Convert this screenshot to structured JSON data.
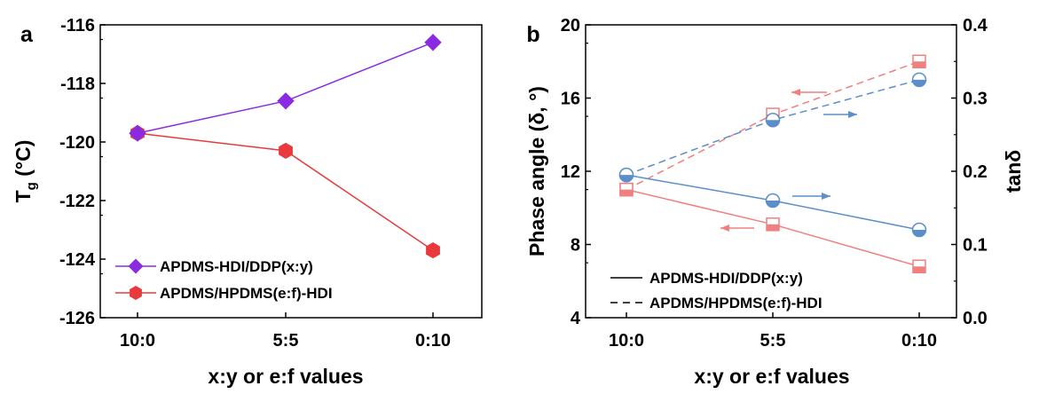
{
  "figure": {
    "colors": {
      "purple": "#8A2BE2",
      "red": "#E8393C",
      "blue": "#5B8FC9",
      "pink": "#F08080",
      "axis": "#000000"
    }
  },
  "chart_data": [
    {
      "panel_label": "a",
      "type": "line",
      "categories": [
        "10:0",
        "5:5",
        "0:10"
      ],
      "xlabel": "x:y or e:f values",
      "ylabel": "T",
      "ylabel_sub": "g",
      "ylabel_unit": " (°C)",
      "ylim": [
        -126,
        -116
      ],
      "yticks": [
        "-116",
        "-118",
        "-120",
        "-122",
        "-124",
        "-126"
      ],
      "series": [
        {
          "name": "APDMS-HDI/DDP(x:y)",
          "values": [
            -119.7,
            -118.6,
            -116.6
          ],
          "marker": "diamond",
          "color": "#8A2BE2"
        },
        {
          "name": "APDMS/HPDMS(e:f)-HDI",
          "values": [
            -119.7,
            -120.3,
            -123.7
          ],
          "marker": "hexagon",
          "color": "#E8393C"
        }
      ]
    },
    {
      "panel_label": "b",
      "type": "line",
      "categories": [
        "10:0",
        "5:5",
        "0:10"
      ],
      "xlabel": "x:y or e:f values",
      "ylabel": "Phase angle (δ, °)",
      "ylim": [
        4,
        20
      ],
      "yticks": [
        "20",
        "16",
        "12",
        "8",
        "4"
      ],
      "y2label": "tanδ",
      "y2lim": [
        0.0,
        0.4
      ],
      "y2ticks": [
        "0.4",
        "0.3",
        "0.2",
        "0.1",
        "0.0"
      ],
      "legend": [
        {
          "name": "APDMS-HDI/DDP(x:y)",
          "style": "solid"
        },
        {
          "name": "APDMS/HPDMS(e:f)-HDI",
          "style": "dashed"
        }
      ],
      "series": [
        {
          "name": "Phase angle, APDMS-HDI/DDP(x:y)",
          "axis": "left",
          "style": "solid",
          "color": "#F08080",
          "values": [
            11.0,
            9.1,
            6.8
          ]
        },
        {
          "name": "Phase angle, APDMS/HPDMS(e:f)-HDI",
          "axis": "left",
          "style": "dashed",
          "color": "#F08080",
          "values": [
            11.0,
            15.1,
            18.0
          ]
        },
        {
          "name": "tanδ, APDMS-HDI/DDP(x:y)",
          "axis": "right",
          "style": "solid",
          "color": "#5B8FC9",
          "values": [
            0.195,
            0.16,
            0.12
          ]
        },
        {
          "name": "tanδ, APDMS/HPDMS(e:f)-HDI",
          "axis": "right",
          "style": "dashed",
          "color": "#5B8FC9",
          "values": [
            0.195,
            0.27,
            0.325
          ]
        }
      ]
    }
  ]
}
